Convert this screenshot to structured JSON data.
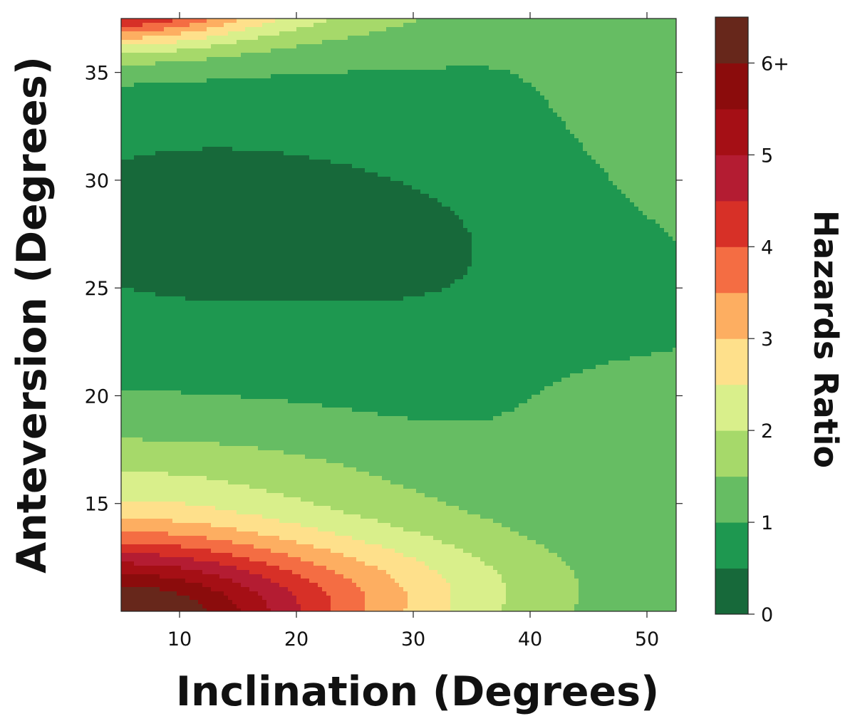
{
  "chart_data": {
    "type": "heatmap",
    "style": "filled contour",
    "xlabel": "Inclination (Degrees)",
    "ylabel": "Anteversion (Degrees)",
    "colorbar_label": "Hazards Ratio",
    "xlim": [
      5,
      52.5
    ],
    "ylim": [
      10,
      37.5
    ],
    "xticks": [
      10,
      20,
      30,
      40,
      50
    ],
    "yticks": [
      15,
      20,
      25,
      30,
      35
    ],
    "colorbar": {
      "range": [
        0,
        6.5
      ],
      "ticks": [
        0,
        1,
        2,
        3,
        4,
        5,
        6
      ],
      "tick_labels": [
        "0",
        "1",
        "2",
        "3",
        "4",
        "5",
        "6+"
      ],
      "level_step": 0.5,
      "colors": [
        "#17693a",
        "#1e9850",
        "#66bd63",
        "#a6d96a",
        "#d9ef8b",
        "#fee08b",
        "#fdae61",
        "#f46d43",
        "#d73027",
        "#b41c32",
        "#a50f15",
        "#8b0c0c",
        "#67271b"
      ]
    },
    "regions_note": "Hazards ratio lowest (0-0.5) for inclination 5-30 and anteversion 22-34; rises to 6+ at low inclination with very low or very high anteversion.",
    "key_points": [
      {
        "inclination": 15,
        "anteversion": 28,
        "hazards_ratio": 0.3
      },
      {
        "inclination": 40,
        "anteversion": 27,
        "hazards_ratio": 0.8
      },
      {
        "inclination": 50,
        "anteversion": 33,
        "hazards_ratio": 1.2
      },
      {
        "inclination": 10,
        "anteversion": 17.5,
        "hazards_ratio": 1.3
      },
      {
        "inclination": 30,
        "anteversion": 14,
        "hazards_ratio": 2.2
      },
      {
        "inclination": 10,
        "anteversion": 12.5,
        "hazards_ratio": 4.5
      },
      {
        "inclination": 6,
        "anteversion": 10.2,
        "hazards_ratio": 6.5
      },
      {
        "inclination": 6,
        "anteversion": 37.3,
        "hazards_ratio": 4.5
      },
      {
        "inclination": 15,
        "anteversion": 36.5,
        "hazards_ratio": 2.3
      }
    ]
  }
}
